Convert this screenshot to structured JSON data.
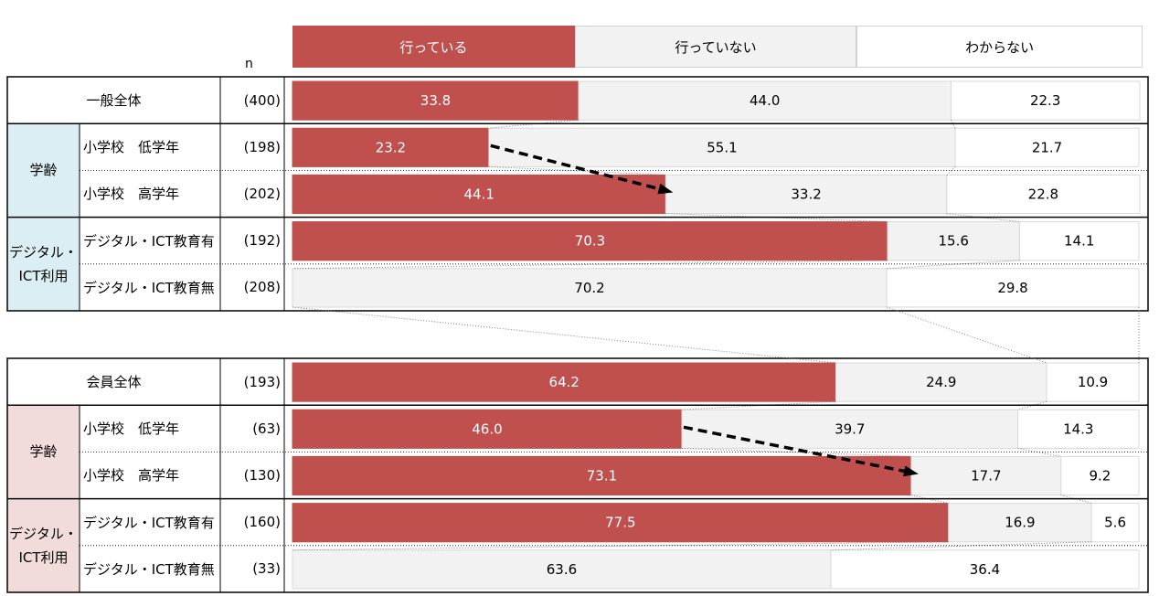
{
  "chart_data": {
    "type": "bar",
    "orientation": "horizontal",
    "stacked": "100%",
    "n_header": "n",
    "categories_legend": [
      "行っている",
      "行っていない",
      "わからない"
    ],
    "colors": [
      "#c0504d",
      "#f2f2f2",
      "#ffffff"
    ],
    "panels": [
      {
        "total": {
          "label": "一般全体",
          "n": "(400)",
          "values": [
            33.8,
            44.0,
            22.3
          ]
        },
        "groups": [
          {
            "label": "学齢",
            "color": "#daeef3",
            "rows": [
              {
                "label": "小学校　低学年",
                "n": "(198)",
                "values": [
                  23.2,
                  55.1,
                  21.7
                ]
              },
              {
                "label": "小学校　高学年",
                "n": "(202)",
                "values": [
                  44.1,
                  33.2,
                  22.8
                ]
              }
            ]
          },
          {
            "label": "デジタル・\nICT利用",
            "color": "#daeef3",
            "rows": [
              {
                "label": "デジタル・ICT教育有",
                "n": "(192)",
                "values": [
                  70.3,
                  15.6,
                  14.1
                ]
              },
              {
                "label": "デジタル・ICT教育無",
                "n": "(208)",
                "values": [
                  0,
                  70.2,
                  29.8
                ]
              }
            ]
          }
        ]
      },
      {
        "total": {
          "label": "会員全体",
          "n": "(193)",
          "values": [
            64.2,
            24.9,
            10.9
          ]
        },
        "groups": [
          {
            "label": "学齢",
            "color": "#f2dcdb",
            "rows": [
              {
                "label": "小学校　低学年",
                "n": "(63)",
                "values": [
                  46.0,
                  39.7,
                  14.3
                ]
              },
              {
                "label": "小学校　高学年",
                "n": "(130)",
                "values": [
                  73.1,
                  17.7,
                  9.2
                ]
              }
            ]
          },
          {
            "label": "デジタル・\nICT利用",
            "color": "#f2dcdb",
            "rows": [
              {
                "label": "デジタル・ICT教育有",
                "n": "(160)",
                "values": [
                  77.5,
                  16.9,
                  5.6
                ]
              },
              {
                "label": "デジタル・ICT教育無",
                "n": "(33)",
                "values": [
                  0,
                  63.6,
                  36.4
                ]
              }
            ]
          }
        ]
      }
    ],
    "annotations": [
      "arrow from 小学校 低学年 行っている to 小学校 高学年 行っている (both panels)"
    ]
  }
}
